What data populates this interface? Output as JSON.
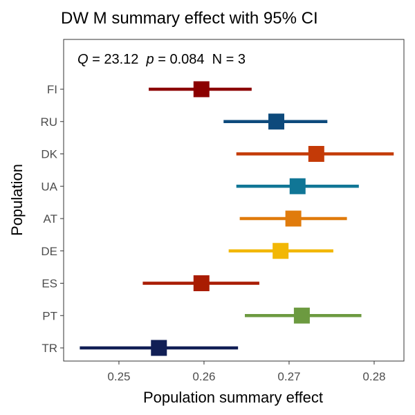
{
  "chart_data": {
    "type": "forest",
    "title": "DW M summary effect with 95% CI",
    "xlabel": "Population summary effect",
    "ylabel": "Population",
    "xlim": [
      0.2435,
      0.2835
    ],
    "xticks": [
      0.25,
      0.26,
      0.27,
      0.28
    ],
    "xtick_labels": [
      "0.25",
      "0.26",
      "0.27",
      "0.28"
    ],
    "grid": false,
    "annotation": {
      "q_symbol": "Q",
      "q_rest": " = 23.12  ",
      "p_symbol": "p",
      "p_rest": " = 0.084  N = 3"
    },
    "categories": [
      "FI",
      "RU",
      "DK",
      "UA",
      "AT",
      "DE",
      "ES",
      "PT",
      "TR"
    ],
    "points": [
      {
        "population": "FI",
        "estimate": 0.2597,
        "ci_lower": 0.2535,
        "ci_upper": 0.2656,
        "color": "#8B0000"
      },
      {
        "population": "RU",
        "estimate": 0.2685,
        "ci_lower": 0.2623,
        "ci_upper": 0.2745,
        "color": "#0D4A7C"
      },
      {
        "population": "DK",
        "estimate": 0.2732,
        "ci_lower": 0.2638,
        "ci_upper": 0.2823,
        "color": "#C43A07"
      },
      {
        "population": "UA",
        "estimate": 0.271,
        "ci_lower": 0.2638,
        "ci_upper": 0.2782,
        "color": "#107696"
      },
      {
        "population": "AT",
        "estimate": 0.2705,
        "ci_lower": 0.2642,
        "ci_upper": 0.2768,
        "color": "#E07B0C"
      },
      {
        "population": "DE",
        "estimate": 0.269,
        "ci_lower": 0.2629,
        "ci_upper": 0.2752,
        "color": "#F2B705"
      },
      {
        "population": "ES",
        "estimate": 0.2597,
        "ci_lower": 0.2528,
        "ci_upper": 0.2665,
        "color": "#A91C02"
      },
      {
        "population": "PT",
        "estimate": 0.2715,
        "ci_lower": 0.2648,
        "ci_upper": 0.2785,
        "color": "#6C9A40"
      },
      {
        "population": "TR",
        "estimate": 0.2547,
        "ci_lower": 0.2454,
        "ci_upper": 0.264,
        "color": "#111F55"
      }
    ]
  }
}
